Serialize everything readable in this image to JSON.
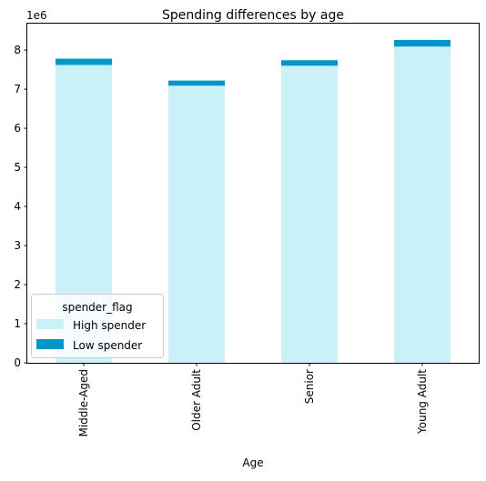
{
  "chart_data": {
    "type": "bar",
    "stacked": true,
    "title": "Spending differences by age",
    "xlabel": "Age",
    "ylabel": "",
    "y_offset_text": "1e6",
    "ylim": [
      0,
      8700000
    ],
    "y_ticks": [
      0,
      1,
      2,
      3,
      4,
      5,
      6,
      7,
      8
    ],
    "y_tick_scale": 1000000,
    "categories": [
      "Middle-Aged",
      "Older Adult",
      "Senior",
      "Young Adult"
    ],
    "series": [
      {
        "name": "High spender",
        "color": "#caf0f8",
        "values": [
          7620000,
          7090000,
          7600000,
          8090000
        ]
      },
      {
        "name": "Low spender",
        "color": "#0096c7",
        "values": [
          160000,
          130000,
          140000,
          170000
        ]
      }
    ],
    "legend": {
      "title": "spender_flag",
      "placement": "lower-left"
    },
    "grid": false
  }
}
